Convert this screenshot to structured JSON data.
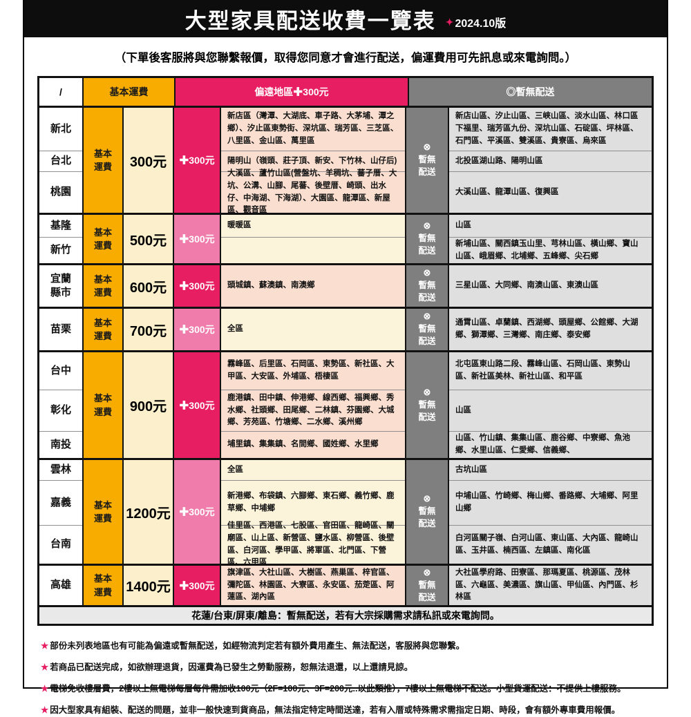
{
  "title": {
    "main": "大型家具配送收費一覽表",
    "diamond": "✦",
    "version": "2024.10版"
  },
  "subtitle": "（下單後客服將與您聯繫報價，取得您同意才會進行配送，偏運費用可先訊息或來電詢問。）",
  "colors": {
    "accent_pink": "#E81E62",
    "light_pink": "#F07CAC",
    "orange": "#F8AC00",
    "light_yellow": "#FBF0CB",
    "peach": "#FADFD0",
    "cream": "#FCF3DB",
    "gray": "#7F7F7F",
    "light_gray": "#DFDFDF",
    "black": "#0D0D0D"
  },
  "header": {
    "slash": "/",
    "base_fee": "基本運費",
    "remote": "偏遠地區✚300元",
    "no_delivery": "◎暫無配送"
  },
  "table": {
    "base_label": "基本運費",
    "plus_label": "✚300元",
    "nd_symbol": "⊗",
    "nd_label": "暫無配送",
    "groups": [
      {
        "price": "300元",
        "rows": [
          {
            "region": "新北",
            "remote": "新店區（灣潭、大湖底、車子路、大茅埔、潭之鄉）、汐止區東勢街、深坑區、瑞芳區、三芝區、八里區、金山區、萬里區",
            "no_delivery": "新店山區、汐止山區、三峽山區、淡水山區、林口區下福里、瑞芳區九份、深坑山區、石碇區、坪林區、石門區、平溪區、雙溪區、貴寮區、烏來區"
          },
          {
            "region": "台北",
            "remote": "陽明山（嶺頭、莊子頂、新安、下竹林、山仔后)",
            "no_delivery": "北投區湖山路、陽明山區"
          },
          {
            "region": "桃園",
            "remote": "大溪區、蘆竹山區(營盤坑、羊稠坑、蕃子厝、大坑、公溝、山腳、尾蕃、後壁厝、崎頭、出水仔、中海湖、下海湖）、大園區、龍潭區、新屋區、觀音區",
            "no_delivery": "大溪山區、龍潭山區、復興區"
          }
        ]
      },
      {
        "price": "500元",
        "rows": [
          {
            "region": "基隆",
            "remote": "暖暖區",
            "no_delivery": "山區"
          },
          {
            "region": "新竹",
            "remote": "",
            "no_delivery": "新埔山區、關西鎮玉山里、芎林山區、橫山鄉、寶山山區、峨眉鄉、北埔鄉、五峰鄉、尖石鄉"
          }
        ]
      },
      {
        "price": "600元",
        "rows": [
          {
            "region": "宜蘭縣市",
            "remote": "頭城鎮、蘇澳鎮、南澳鄉",
            "no_delivery": "三星山區、大同鄉、南澳山區、東澳山區"
          }
        ]
      },
      {
        "price": "700元",
        "rows": [
          {
            "region": "苗栗",
            "remote": "全區",
            "no_delivery": "通霄山區、卓蘭鎮、西湖鄉、頭屋鄉、公館鄉、大湖鄉、獅潭鄉、三灣鄉、南庄鄉、泰安鄉"
          }
        ]
      },
      {
        "price": "900元",
        "rows": [
          {
            "region": "台中",
            "remote": "霧峰區、后里區、石岡區、東勢區、新社區、大甲區、大安區、外埔區、梧棲區",
            "no_delivery": "北屯區東山路二段、霧峰山區、石岡山區、東勢山區、新社區美林、新社山區、和平區"
          },
          {
            "region": "彰化",
            "remote": "鹿港鎮、田中鎮、伸港鄉、線西鄉、福興鄉、秀水鄉、社頭鄉、田尾鄉、二林鎮、芬園鄉、大城鄉、芳苑區、竹塘鄉、二水鄉、溪州鄉",
            "no_delivery": "山區"
          },
          {
            "region": "南投",
            "remote": "埔里鎮、集集鎮、名間鄉、國姓鄉、水里鄉",
            "no_delivery": "山區、竹山鎮、集集山區、鹿谷鄉、中寮鄉、魚池鄉、水里山區、仁愛鄉、信義鄉、"
          }
        ]
      },
      {
        "price": "1200元",
        "rows": [
          {
            "region": "雲林",
            "remote": "全區",
            "no_delivery": "古坑山區"
          },
          {
            "region": "嘉義",
            "remote": "新港鄉、布袋鎮、六腳鄉、東石鄉、義竹鄉、鹿草鄉、中埔鄉",
            "no_delivery": "中埔山區、竹崎鄉、梅山鄉、番路鄉、大埔鄉、阿里山鄉"
          },
          {
            "region": "台南",
            "remote": "佳里區、西港區、七股區、官田區、龍崎區、關廟區、山上區、新營區、鹽水區、柳營區、後壁區、白河區、學甲區、將軍區、北門區、下營區、六甲區",
            "no_delivery": "白河區關子嶺、白河山區、東山區、大內區、龍崎山區、玉井區、楠西區、左鎮區、南化區"
          }
        ]
      },
      {
        "price": "1400元",
        "rows": [
          {
            "region": "高雄",
            "remote": "旗津區、大社山區、大樹區、燕巢區、梓官區、彌陀區、林園區、大寮區、永安區、茄萣區、阿蓮區、湖內區",
            "no_delivery": "大社區學府路、田寮區、那瑪夏區、桃源區、茂林區、六龜區、美濃區、旗山區、甲仙區、內門區、杉林區"
          }
        ]
      }
    ]
  },
  "banner": "花蓮/台東/屏東/離島：暫無配送，若有大宗採購需求請私訊或來電詢問。",
  "note_star": "★",
  "notes": [
    "部份未列表地區也有可能為偏遠或暫無配送，如經物流判定若有額外費用產生、無法配送，客服將與您聯繫。",
    "若商品已配送完成，如欲辦理退貨，因運費為已發生之勞動服務，恕無法退還，以上還請見諒。",
    "電梯免收樓層費，2樓以上無電梯每層每件需加收100元（2F=100元、3F=200元..以此類推），7樓以上無電梯不配送。小型貨運配送：不提供上樓服務。",
    "因大型家具有組裝、配送的問題，並非一般快速到貨商品，無法指定特定時間送達，若有入厝或特殊需求需指定日期、時段，會有額外專車費用報價。"
  ]
}
